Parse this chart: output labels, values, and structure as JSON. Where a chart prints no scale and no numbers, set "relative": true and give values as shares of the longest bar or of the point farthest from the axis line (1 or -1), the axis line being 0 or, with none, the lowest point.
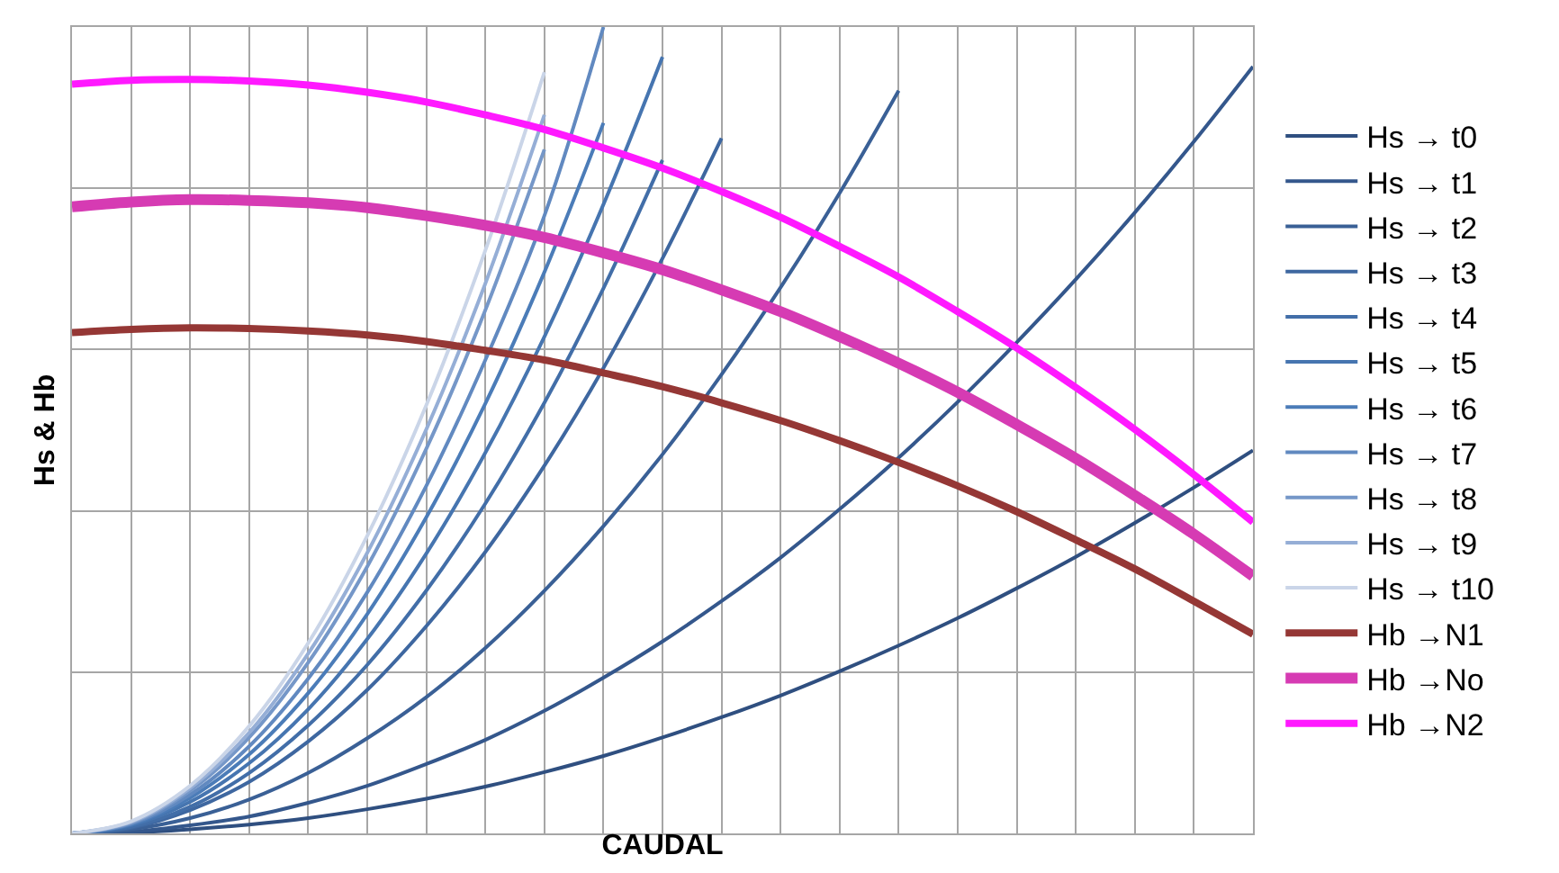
{
  "chart_data": {
    "type": "line",
    "relative": true,
    "xlabel": "CAUDAL",
    "ylabel": "Hs & Hb",
    "grid": true,
    "legend": "right",
    "marker": "none",
    "line_style": "solid",
    "categories": [
      null,
      null,
      null,
      null,
      null,
      null,
      null,
      null,
      null,
      null,
      null,
      null,
      null,
      null,
      null,
      null,
      null,
      null,
      null,
      null,
      null
    ],
    "series": [
      {
        "name": "Hs → t0",
        "color": "#2f4f80",
        "values": [
          0,
          0.001,
          0.005,
          0.011,
          0.019,
          0.03,
          0.043,
          0.058,
          0.076,
          0.096,
          0.119,
          0.144,
          0.171,
          0.201,
          0.233,
          0.267,
          0.304,
          0.343,
          0.385,
          0.429,
          0.475
        ]
      },
      {
        "name": "Hs → t1",
        "color": "#34578c",
        "values": [
          0,
          0.002,
          0.01,
          0.021,
          0.038,
          0.059,
          0.086,
          0.116,
          0.152,
          0.193,
          0.238,
          0.288,
          0.342,
          0.402,
          0.466,
          0.535,
          0.609,
          0.687,
          0.77,
          0.858,
          0.951
        ]
      },
      {
        "name": "Hs → t2",
        "color": "#3a6096",
        "values": [
          0,
          0.005,
          0.019,
          0.042,
          0.075,
          0.118,
          0.169,
          0.23,
          0.301,
          0.381,
          0.47,
          0.569,
          0.677,
          0.794,
          0.921,
          null,
          null,
          null,
          null,
          null,
          null
        ]
      },
      {
        "name": "Hs → t3",
        "color": "#3e67a0",
        "values": [
          0,
          0.007,
          0.029,
          0.064,
          0.114,
          0.178,
          0.257,
          0.349,
          0.456,
          0.577,
          0.713,
          0.862,
          null,
          null,
          null,
          null,
          null,
          null,
          null,
          null,
          null
        ]
      },
      {
        "name": "Hs → t4",
        "color": "#426ea8",
        "values": [
          0,
          0.008,
          0.033,
          0.075,
          0.134,
          0.209,
          0.301,
          0.409,
          0.534,
          0.676,
          0.835,
          null,
          null,
          null,
          null,
          null,
          null,
          null,
          null,
          null,
          null
        ]
      },
      {
        "name": "Hs → t5",
        "color": "#4675b0",
        "values": [
          0,
          0.01,
          0.039,
          0.087,
          0.154,
          0.241,
          0.347,
          0.472,
          0.616,
          0.78,
          0.963,
          null,
          null,
          null,
          null,
          null,
          null,
          null,
          null,
          null,
          null
        ]
      },
      {
        "name": "Hs → t6",
        "color": "#4b7cb8",
        "values": [
          0,
          0.011,
          0.044,
          0.098,
          0.174,
          0.272,
          0.392,
          0.533,
          0.696,
          0.881,
          null,
          null,
          null,
          null,
          null,
          null,
          null,
          null,
          null,
          null,
          null
        ]
      },
      {
        "name": "Hs → t7",
        "color": "#6189c0",
        "values": [
          0,
          0.012,
          0.048,
          0.108,
          0.192,
          0.299,
          0.431,
          0.587,
          0.766,
          1.0,
          null,
          null,
          null,
          null,
          null,
          null,
          null,
          null,
          null,
          null,
          null
        ]
      },
      {
        "name": "Hs → t8",
        "color": "#7597c8",
        "values": [
          0,
          0.013,
          0.053,
          0.119,
          0.212,
          0.331,
          0.477,
          0.649,
          0.848,
          null,
          null,
          null,
          null,
          null,
          null,
          null,
          null,
          null,
          null,
          null,
          null
        ]
      },
      {
        "name": "Hs → t9",
        "color": "#95aed6",
        "values": [
          0,
          0.014,
          0.056,
          0.125,
          0.223,
          0.348,
          0.501,
          0.682,
          0.891,
          null,
          null,
          null,
          null,
          null,
          null,
          null,
          null,
          null,
          null,
          null,
          null
        ]
      },
      {
        "name": "Hs → t10",
        "color": "#cad5e8",
        "values": [
          0,
          0.015,
          0.059,
          0.133,
          0.236,
          0.369,
          0.531,
          0.723,
          0.944,
          null,
          null,
          null,
          null,
          null,
          null,
          null,
          null,
          null,
          null,
          null,
          null
        ]
      },
      {
        "name": "Hb →N1",
        "color": "#953735",
        "values": [
          0.621,
          0.625,
          0.627,
          0.626,
          0.623,
          0.618,
          0.61,
          0.599,
          0.587,
          0.571,
          0.554,
          0.534,
          0.512,
          0.487,
          0.46,
          0.431,
          0.399,
          0.364,
          0.328,
          0.288,
          0.247
        ]
      },
      {
        "name": "Hb →No",
        "color": "#d63bb3",
        "values": [
          0.777,
          0.783,
          0.786,
          0.785,
          0.782,
          0.776,
          0.766,
          0.754,
          0.739,
          0.72,
          0.699,
          0.674,
          0.647,
          0.616,
          0.583,
          0.547,
          0.507,
          0.465,
          0.419,
          0.371,
          0.319
        ]
      },
      {
        "name": "Hb →N2",
        "color": "#ff19ff",
        "values": [
          0.929,
          0.934,
          0.935,
          0.933,
          0.928,
          0.919,
          0.907,
          0.891,
          0.873,
          0.85,
          0.825,
          0.796,
          0.764,
          0.728,
          0.69,
          0.647,
          0.602,
          0.553,
          0.501,
          0.445,
          0.386
        ]
      }
    ]
  }
}
